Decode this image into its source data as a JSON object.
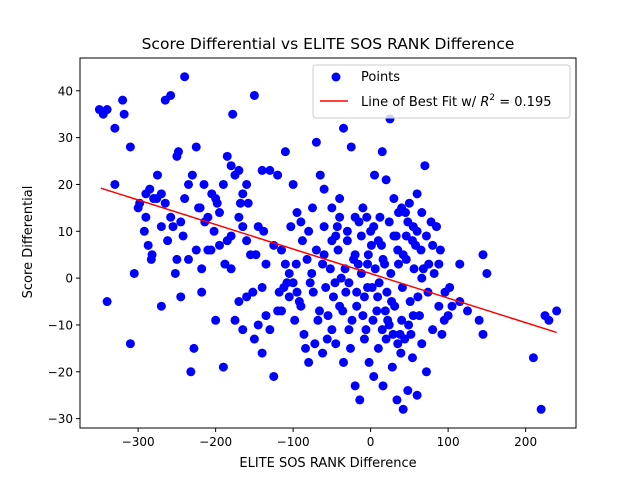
{
  "chart_data": {
    "type": "scatter",
    "title": "Score Differential vs ELITE SOS RANK Difference",
    "xlabel": "ELITE SOS RANK Difference",
    "ylabel": "Score Differential",
    "xlim": [
      -375,
      265
    ],
    "ylim": [
      -32,
      47
    ],
    "xticks": [
      -300,
      -200,
      -100,
      0,
      100,
      200
    ],
    "yticks": [
      -30,
      -20,
      -10,
      0,
      10,
      20,
      30,
      40
    ],
    "grid": false,
    "legend": {
      "placement": "top-right",
      "points_label": "Points",
      "fit_label_prefix": "Line of Best Fit w/ ",
      "fit_label_r2": "R",
      "fit_label_sup": "2",
      "fit_label_value": " = 0.195"
    },
    "colors": {
      "points": "#0000ff",
      "fit_line": "#ff0000"
    },
    "fit_line": {
      "x": [
        -348,
        240
      ],
      "y": [
        19.2,
        -11.6
      ]
    },
    "points": [
      [
        -350,
        36
      ],
      [
        -345,
        35
      ],
      [
        -340,
        36
      ],
      [
        -330,
        32
      ],
      [
        -320,
        38
      ],
      [
        -318,
        35
      ],
      [
        -310,
        28
      ],
      [
        -298,
        16
      ],
      [
        -290,
        18
      ],
      [
        -285,
        19
      ],
      [
        -280,
        17
      ],
      [
        -275,
        22
      ],
      [
        -270,
        18
      ],
      [
        -265,
        16
      ],
      [
        -258,
        13
      ],
      [
        -255,
        11
      ],
      [
        -250,
        26
      ],
      [
        -248,
        27
      ],
      [
        -245,
        12
      ],
      [
        -240,
        17
      ],
      [
        -235,
        20
      ],
      [
        -230,
        22
      ],
      [
        -225,
        28
      ],
      [
        -220,
        15
      ],
      [
        -215,
        20
      ],
      [
        -210,
        13
      ],
      [
        -205,
        18
      ],
      [
        -200,
        17
      ],
      [
        -195,
        14
      ],
      [
        -190,
        20
      ],
      [
        -185,
        26
      ],
      [
        -180,
        24
      ],
      [
        -175,
        22
      ],
      [
        -170,
        23
      ],
      [
        -165,
        18
      ],
      [
        -160,
        20
      ],
      [
        -158,
        16
      ],
      [
        -150,
        39
      ],
      [
        -145,
        11
      ],
      [
        -140,
        23
      ],
      [
        -130,
        23
      ],
      [
        -120,
        22
      ],
      [
        -110,
        27
      ],
      [
        -100,
        20
      ],
      [
        -95,
        14
      ],
      [
        -90,
        12
      ],
      [
        -80,
        10
      ],
      [
        -75,
        15
      ],
      [
        -70,
        29
      ],
      [
        -65,
        22
      ],
      [
        -60,
        19
      ],
      [
        -50,
        15
      ],
      [
        -45,
        9
      ],
      [
        -40,
        17
      ],
      [
        -35,
        32
      ],
      [
        -30,
        8
      ],
      [
        -25,
        28
      ],
      [
        -20,
        13
      ],
      [
        -15,
        12
      ],
      [
        -10,
        15
      ],
      [
        -5,
        13
      ],
      [
        0,
        10
      ],
      [
        5,
        22
      ],
      [
        10,
        8
      ],
      [
        15,
        27
      ],
      [
        20,
        21
      ],
      [
        25,
        34
      ],
      [
        30,
        17
      ],
      [
        35,
        6
      ],
      [
        40,
        15
      ],
      [
        45,
        14
      ],
      [
        50,
        16
      ],
      [
        55,
        11
      ],
      [
        60,
        18
      ],
      [
        65,
        6
      ],
      [
        70,
        24
      ],
      [
        75,
        3
      ],
      [
        80,
        7
      ],
      [
        85,
        11
      ],
      [
        90,
        6
      ],
      [
        -330,
        20
      ],
      [
        -300,
        15
      ],
      [
        -292,
        10
      ],
      [
        -287,
        7
      ],
      [
        -283,
        4
      ],
      [
        -270,
        11
      ],
      [
        -262,
        8
      ],
      [
        -250,
        4
      ],
      [
        -242,
        9
      ],
      [
        -235,
        4
      ],
      [
        -225,
        6
      ],
      [
        -218,
        2
      ],
      [
        -210,
        6
      ],
      [
        -202,
        10
      ],
      [
        -195,
        7
      ],
      [
        -185,
        8
      ],
      [
        -180,
        9
      ],
      [
        -170,
        13
      ],
      [
        -165,
        11
      ],
      [
        -155,
        5
      ],
      [
        -148,
        5
      ],
      [
        -140,
        -2
      ],
      [
        -135,
        3
      ],
      [
        -125,
        7
      ],
      [
        -115,
        6
      ],
      [
        -110,
        3
      ],
      [
        -105,
        1
      ],
      [
        -100,
        -1
      ],
      [
        -95,
        -3
      ],
      [
        -88,
        8
      ],
      [
        -82,
        4
      ],
      [
        -76,
        1
      ],
      [
        -70,
        6
      ],
      [
        -62,
        3
      ],
      [
        -58,
        -2
      ],
      [
        -52,
        2
      ],
      [
        -48,
        -4
      ],
      [
        -42,
        6
      ],
      [
        -38,
        0
      ],
      [
        -33,
        2
      ],
      [
        -28,
        -1
      ],
      [
        -22,
        4
      ],
      [
        -18,
        -3
      ],
      [
        -12,
        1
      ],
      [
        -8,
        -4
      ],
      [
        -3,
        5
      ],
      [
        2,
        -2
      ],
      [
        6,
        2
      ],
      [
        11,
        -1
      ],
      [
        16,
        4
      ],
      [
        21,
        -3
      ],
      [
        26,
        1
      ],
      [
        31,
        -6
      ],
      [
        36,
        3
      ],
      [
        41,
        -2
      ],
      [
        46,
        4
      ],
      [
        51,
        -5
      ],
      [
        56,
        2
      ],
      [
        61,
        -4
      ],
      [
        66,
        0
      ],
      [
        -340,
        -5
      ],
      [
        -310,
        -14
      ],
      [
        -270,
        -6
      ],
      [
        -245,
        -4
      ],
      [
        -232,
        -20
      ],
      [
        -228,
        -15
      ],
      [
        -218,
        -3
      ],
      [
        -200,
        -9
      ],
      [
        -190,
        -19
      ],
      [
        -175,
        -9
      ],
      [
        -165,
        -11
      ],
      [
        -150,
        -13
      ],
      [
        -140,
        -16
      ],
      [
        -125,
        -21
      ],
      [
        -115,
        -7
      ],
      [
        -105,
        -4
      ],
      [
        -98,
        -9
      ],
      [
        -90,
        -6
      ],
      [
        -80,
        -18
      ],
      [
        -72,
        -14
      ],
      [
        -62,
        -16
      ],
      [
        -55,
        -8
      ],
      [
        -45,
        -14
      ],
      [
        -35,
        -18
      ],
      [
        -28,
        -11
      ],
      [
        -20,
        -23
      ],
      [
        -14,
        -26
      ],
      [
        -8,
        -13
      ],
      [
        -2,
        -18
      ],
      [
        4,
        -21
      ],
      [
        10,
        -15
      ],
      [
        16,
        -23
      ],
      [
        22,
        -9
      ],
      [
        28,
        -19
      ],
      [
        34,
        -26
      ],
      [
        38,
        -12
      ],
      [
        42,
        -28
      ],
      [
        48,
        -24
      ],
      [
        54,
        -17
      ],
      [
        60,
        -25
      ],
      [
        66,
        -14
      ],
      [
        72,
        -20
      ],
      [
        80,
        -11
      ],
      [
        88,
        -6
      ],
      [
        95,
        -9
      ],
      [
        105,
        -6
      ],
      [
        115,
        -5
      ],
      [
        125,
        -7
      ],
      [
        140,
        -9
      ],
      [
        145,
        -12
      ],
      [
        150,
        1
      ],
      [
        210,
        -17
      ],
      [
        220,
        -28
      ],
      [
        225,
        -8
      ],
      [
        230,
        -9
      ],
      [
        240,
        -7
      ],
      [
        145,
        5
      ],
      [
        115,
        3
      ],
      [
        100,
        -8
      ],
      [
        92,
        -12
      ],
      [
        -305,
        1
      ],
      [
        -290,
        13
      ],
      [
        -282,
        5
      ],
      [
        -276,
        17
      ],
      [
        -265,
        38
      ],
      [
        -258,
        39
      ],
      [
        -252,
        1
      ],
      [
        -240,
        43
      ],
      [
        -222,
        15
      ],
      [
        -214,
        12
      ],
      [
        -206,
        6
      ],
      [
        -198,
        16
      ],
      [
        -188,
        3
      ],
      [
        -178,
        35
      ],
      [
        -168,
        16
      ],
      [
        -160,
        8
      ],
      [
        -152,
        -3
      ],
      [
        -138,
        10
      ],
      [
        -130,
        -11
      ],
      [
        -120,
        -7
      ],
      [
        -112,
        -2
      ],
      [
        -103,
        11
      ],
      [
        -96,
        3
      ],
      [
        -86,
        -12
      ],
      [
        -78,
        -1
      ],
      [
        -68,
        -9
      ],
      [
        -60,
        5
      ],
      [
        -50,
        -11
      ],
      [
        -43,
        11
      ],
      [
        -36,
        -7
      ],
      [
        -26,
        -15
      ],
      [
        -16,
        3
      ],
      [
        -6,
        -11
      ],
      [
        1,
        7
      ],
      [
        8,
        -7
      ],
      [
        14,
        7
      ],
      [
        20,
        -13
      ],
      [
        27,
        -5
      ],
      [
        33,
        9
      ],
      [
        40,
        -9
      ],
      [
        46,
        9
      ],
      [
        52,
        -12
      ],
      [
        58,
        7
      ],
      [
        63,
        -8
      ],
      [
        68,
        2
      ],
      [
        74,
        -3
      ],
      [
        82,
        1
      ],
      [
        88,
        3
      ],
      [
        96,
        -3
      ],
      [
        102,
        -2
      ],
      [
        -180,
        2
      ],
      [
        -170,
        -5
      ],
      [
        -160,
        -4
      ],
      [
        -145,
        -10
      ],
      [
        -135,
        -8
      ],
      [
        -118,
        -3
      ],
      [
        -108,
        -1
      ],
      [
        -92,
        -5
      ],
      [
        -84,
        -15
      ],
      [
        -74,
        -3
      ],
      [
        -66,
        -7
      ],
      [
        -56,
        -13
      ],
      [
        -46,
        -1
      ],
      [
        -40,
        -6
      ],
      [
        -32,
        -3
      ],
      [
        -24,
        -9
      ],
      [
        -18,
        -6
      ],
      [
        -10,
        -8
      ],
      [
        -4,
        -2
      ],
      [
        3,
        -9
      ],
      [
        9,
        -4
      ],
      [
        15,
        -11
      ],
      [
        19,
        -7
      ],
      [
        24,
        -10
      ],
      [
        29,
        -12
      ],
      [
        35,
        -14
      ],
      [
        39,
        -16
      ],
      [
        44,
        -13
      ],
      [
        49,
        -10
      ],
      [
        55,
        -8
      ],
      [
        -60,
        11
      ],
      [
        -50,
        8
      ],
      [
        -40,
        13
      ],
      [
        -30,
        10
      ],
      [
        -20,
        5
      ],
      [
        -12,
        9
      ],
      [
        -4,
        3
      ],
      [
        4,
        11
      ],
      [
        12,
        13
      ],
      [
        18,
        3
      ],
      [
        24,
        12
      ],
      [
        30,
        9
      ],
      [
        36,
        14
      ],
      [
        42,
        5
      ],
      [
        48,
        12
      ],
      [
        54,
        8
      ],
      [
        60,
        10
      ],
      [
        66,
        14
      ],
      [
        72,
        9
      ],
      [
        78,
        12
      ]
    ]
  }
}
